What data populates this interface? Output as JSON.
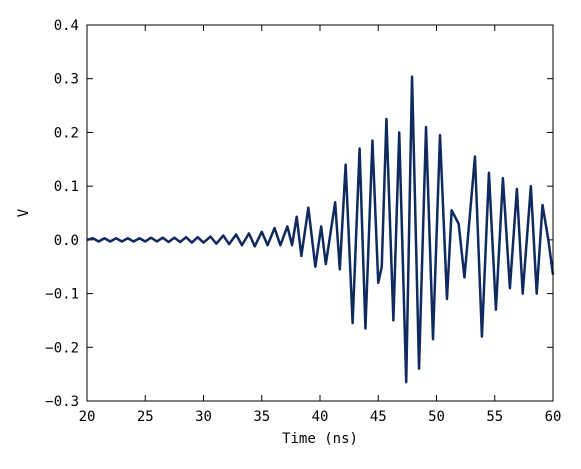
{
  "chart_data": {
    "type": "line",
    "xlabel": "Time (ns)",
    "ylabel": "V",
    "xlim": [
      20,
      60
    ],
    "ylim": [
      -0.3,
      0.4
    ],
    "xticks": [
      20,
      25,
      30,
      35,
      40,
      45,
      50,
      55,
      60
    ],
    "yticks": [
      {
        "value": -0.3,
        "label": "−0.3"
      },
      {
        "value": -0.2,
        "label": "−0.2"
      },
      {
        "value": -0.1,
        "label": "−0.1"
      },
      {
        "value": 0,
        "label": "0.0"
      },
      {
        "value": 0.1,
        "label": "0.1"
      },
      {
        "value": 0.2,
        "label": "0.2"
      },
      {
        "value": 0.3,
        "label": "0.3"
      },
      {
        "value": 0.4,
        "label": "0.4"
      }
    ],
    "grid": false,
    "series": [
      {
        "color": "#0f2a5e",
        "x": [
          20,
          20.5,
          21,
          21.5,
          22,
          22.5,
          23,
          23.5,
          24,
          24.5,
          25,
          25.5,
          26,
          26.5,
          27,
          27.5,
          28,
          28.5,
          29,
          29.5,
          30,
          30.6,
          31.1,
          31.7,
          32.2,
          32.8,
          33.3,
          33.9,
          34.4,
          35.0,
          35.5,
          36.1,
          36.6,
          37.2,
          37.6,
          38.0,
          38.4,
          39.0,
          39.6,
          40.1,
          40.5,
          41.3,
          41.7,
          42.2,
          42.8,
          43.4,
          43.9,
          44.5,
          45.0,
          45.3,
          45.7,
          46.3,
          46.8,
          47.4,
          47.9,
          48.5,
          49.1,
          49.7,
          50.3,
          50.9,
          51.3,
          51.9,
          52.4,
          53.3,
          53.9,
          54.5,
          55.1,
          55.7,
          56.3,
          56.9,
          57.4,
          58.1,
          58.6,
          59.1,
          59.6,
          60
        ],
        "values": [
          0,
          0.003,
          -0.003,
          0.003,
          -0.003,
          0.003,
          -0.003,
          0.003,
          -0.003,
          0.003,
          -0.003,
          0.004,
          -0.003,
          0.004,
          -0.004,
          0.004,
          -0.004,
          0.005,
          -0.005,
          0.005,
          -0.005,
          0.006,
          -0.007,
          0.008,
          -0.008,
          0.01,
          -0.01,
          0.012,
          -0.012,
          0.015,
          -0.01,
          0.022,
          -0.01,
          0.025,
          -0.01,
          0.043,
          -0.03,
          0.06,
          -0.05,
          0.025,
          -0.045,
          0.07,
          -0.055,
          0.14,
          -0.155,
          0.17,
          -0.165,
          0.185,
          -0.08,
          -0.05,
          0.225,
          -0.15,
          0.2,
          -0.265,
          0.304,
          -0.24,
          0.21,
          -0.185,
          0.195,
          -0.11,
          0.055,
          0.03,
          -0.07,
          0.155,
          -0.18,
          0.125,
          -0.13,
          0.115,
          -0.09,
          0.095,
          -0.1,
          0.1,
          -0.1,
          0.065,
          0.0,
          -0.065
        ]
      }
    ]
  }
}
